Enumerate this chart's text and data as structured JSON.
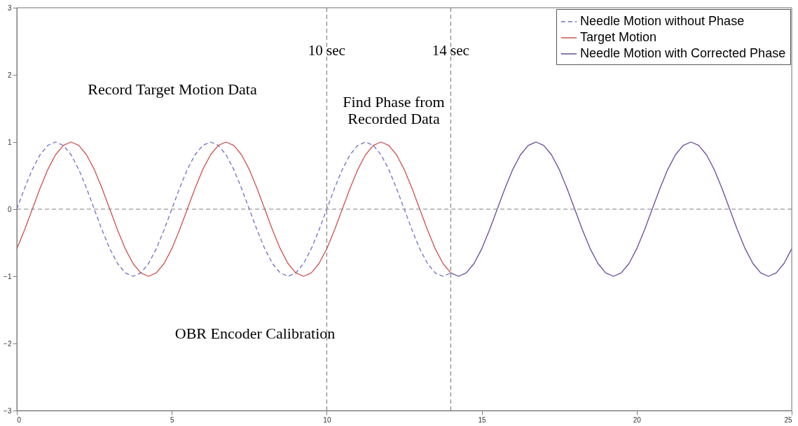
{
  "chart_data": {
    "type": "line",
    "xlim": [
      0,
      25
    ],
    "ylim": [
      -3,
      3
    ],
    "xticks": [
      0,
      5,
      10,
      15,
      20,
      25
    ],
    "yticks": [
      -3,
      -2,
      -1,
      0,
      1,
      2,
      3
    ],
    "grid": false,
    "legend": "top right",
    "marker": "none",
    "series": [
      {
        "name": "Needle Motion without Phase",
        "color": "#6f6fc8",
        "line_style": "dashed",
        "x": [
          0,
          0.25,
          0.5,
          0.75,
          1,
          1.25,
          1.5,
          1.75,
          2,
          2.25,
          2.5,
          2.75,
          3,
          3.25,
          3.5,
          3.75,
          4,
          4.25,
          4.5,
          4.75,
          5,
          5.25,
          5.5,
          5.75,
          6,
          6.25,
          6.5,
          6.75,
          7,
          7.25,
          7.5,
          7.75,
          8,
          8.25,
          8.5,
          8.75,
          9,
          9.25,
          9.5,
          9.75,
          10,
          10.25,
          10.5,
          10.75,
          11,
          11.25,
          11.5,
          11.75,
          12,
          12.25,
          12.5,
          12.75,
          13,
          13.25,
          13.5,
          13.75,
          14
        ],
        "values": [
          0,
          0.31,
          0.59,
          0.81,
          0.95,
          1,
          0.95,
          0.81,
          0.59,
          0.31,
          0,
          -0.31,
          -0.59,
          -0.81,
          -0.95,
          -1,
          -0.95,
          -0.81,
          -0.59,
          -0.31,
          0,
          0.31,
          0.59,
          0.81,
          0.95,
          1,
          0.95,
          0.81,
          0.59,
          0.31,
          0,
          -0.31,
          -0.59,
          -0.81,
          -0.95,
          -1,
          -0.95,
          -0.81,
          -0.59,
          -0.31,
          0,
          0.31,
          0.59,
          0.81,
          0.95,
          1,
          0.95,
          0.81,
          0.59,
          0.31,
          0,
          -0.31,
          -0.59,
          -0.81,
          -0.95,
          -1,
          -0.95
        ]
      },
      {
        "name": "Target Motion",
        "color": "#d05050",
        "line_style": "solid",
        "x": [
          0,
          0.25,
          0.5,
          0.75,
          1,
          1.25,
          1.5,
          1.75,
          2,
          2.25,
          2.5,
          2.75,
          3,
          3.25,
          3.5,
          3.75,
          4,
          4.25,
          4.5,
          4.75,
          5,
          5.25,
          5.5,
          5.75,
          6,
          6.25,
          6.5,
          6.75,
          7,
          7.25,
          7.5,
          7.75,
          8,
          8.25,
          8.5,
          8.75,
          9,
          9.25,
          9.5,
          9.75,
          10,
          10.25,
          10.5,
          10.75,
          11,
          11.25,
          11.5,
          11.75,
          12,
          12.25,
          12.5,
          12.75,
          13,
          13.25,
          13.5,
          13.75,
          14
        ],
        "values": [
          -0.59,
          -0.31,
          0,
          0.31,
          0.59,
          0.81,
          0.95,
          1,
          0.95,
          0.81,
          0.59,
          0.31,
          0,
          -0.31,
          -0.59,
          -0.81,
          -0.95,
          -1,
          -0.95,
          -0.81,
          -0.59,
          -0.31,
          0,
          0.31,
          0.59,
          0.81,
          0.95,
          1,
          0.95,
          0.81,
          0.59,
          0.31,
          0,
          -0.31,
          -0.59,
          -0.81,
          -0.95,
          -1,
          -0.95,
          -0.81,
          -0.59,
          -0.31,
          0,
          0.31,
          0.59,
          0.81,
          0.95,
          1,
          0.95,
          0.81,
          0.59,
          0.31,
          0,
          -0.31,
          -0.59,
          -0.81,
          -0.95
        ]
      },
      {
        "name": "Needle Motion with Corrected Phase",
        "color": "#6a4a9a",
        "line_style": "solid",
        "x": [
          14,
          14.25,
          14.5,
          14.75,
          15,
          15.25,
          15.5,
          15.75,
          16,
          16.25,
          16.5,
          16.75,
          17,
          17.25,
          17.5,
          17.75,
          18,
          18.25,
          18.5,
          18.75,
          19,
          19.25,
          19.5,
          19.75,
          20,
          20.25,
          20.5,
          20.75,
          21,
          21.25,
          21.5,
          21.75,
          22,
          22.25,
          22.5,
          22.75,
          23,
          23.25,
          23.5,
          23.75,
          24,
          24.25,
          24.5,
          24.75,
          25
        ],
        "values": [
          -0.95,
          -1,
          -0.95,
          -0.81,
          -0.59,
          -0.31,
          0,
          0.31,
          0.59,
          0.81,
          0.95,
          1,
          0.95,
          0.81,
          0.59,
          0.31,
          0,
          -0.31,
          -0.59,
          -0.81,
          -0.95,
          -1,
          -0.95,
          -0.81,
          -0.59,
          -0.31,
          0,
          0.31,
          0.59,
          0.81,
          0.95,
          1,
          0.95,
          0.81,
          0.59,
          0.31,
          0,
          -0.31,
          -0.59,
          -0.81,
          -0.95,
          -1,
          -0.95,
          -0.81,
          -0.59
        ]
      }
    ],
    "ref_lines": [
      {
        "axis": "y",
        "value": 0,
        "label": null,
        "color": "#808080",
        "line_style": "dashed"
      },
      {
        "axis": "x",
        "value": 10,
        "label": "10 sec",
        "color": "#707070",
        "line_style": "dashed"
      },
      {
        "axis": "x",
        "value": 14,
        "label": "14 sec",
        "color": "#707070",
        "line_style": "dashed"
      }
    ],
    "annotations": [
      "Record Target Motion Data",
      "Find Phase from\nRecorded Data",
      "OBR Encoder Calibration"
    ]
  }
}
